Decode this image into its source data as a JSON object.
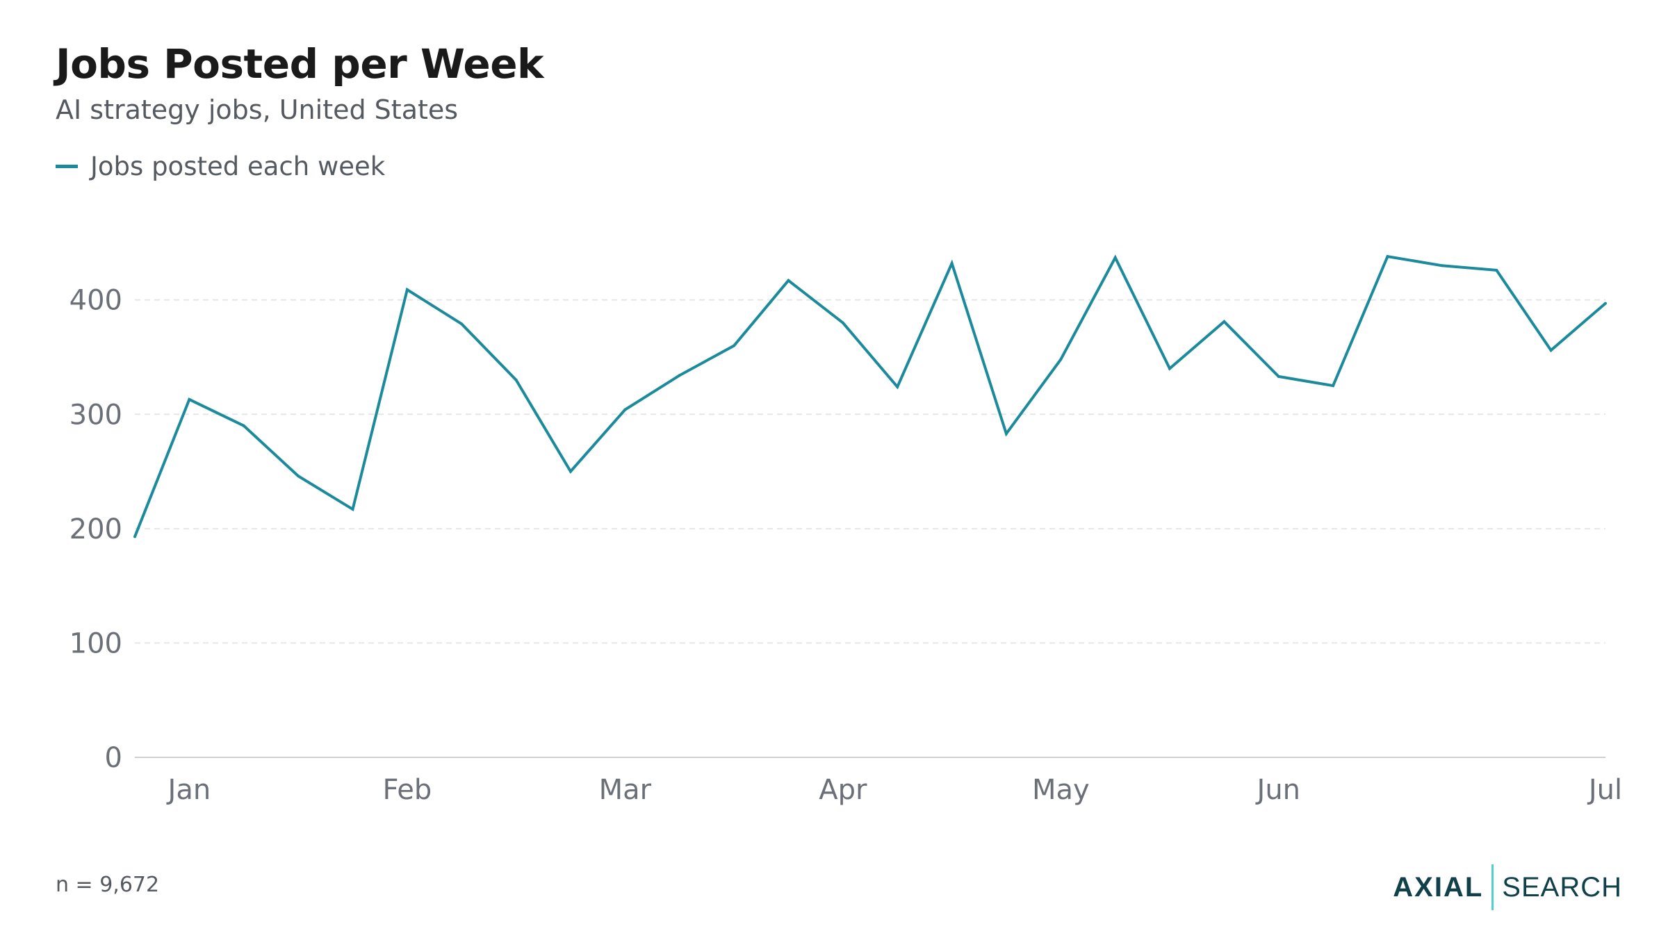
{
  "header": {
    "title": "Jobs Posted per Week",
    "subtitle": "AI strategy jobs, United States"
  },
  "legend": {
    "label": "Jobs posted each week",
    "color": "#1b8a9a"
  },
  "footer": {
    "note": "n = 9,672",
    "brand_logo": "AXIAL",
    "brand_word": "SEARCH",
    "brand_color": "#10414a",
    "brand_accent": "#4fd1c5"
  },
  "chart_data": {
    "type": "line",
    "x": [
      "2024-01-01",
      "2024-01-08",
      "2024-01-15",
      "2024-01-22",
      "2024-01-29",
      "2024-02-05",
      "2024-02-12",
      "2024-02-19",
      "2024-02-26",
      "2024-03-04",
      "2024-03-11",
      "2024-03-18",
      "2024-03-25",
      "2024-04-01",
      "2024-04-08",
      "2024-04-15",
      "2024-04-22",
      "2024-04-29",
      "2024-05-06",
      "2024-05-13",
      "2024-05-20",
      "2024-05-27",
      "2024-06-03",
      "2024-06-10",
      "2024-06-17",
      "2024-06-24",
      "2024-07-01",
      "2024-07-08"
    ],
    "series": [
      {
        "name": "Jobs posted each week",
        "color": "#1b8a9a",
        "values": [
          193,
          313,
          290,
          246,
          217,
          409,
          379,
          330,
          250,
          304,
          334,
          360,
          417,
          380,
          324,
          432,
          283,
          348,
          437,
          340,
          381,
          333,
          325,
          438,
          430,
          426,
          356,
          397
        ]
      }
    ],
    "x_ticks": [
      {
        "label": "Jan",
        "date": "2024-01-08"
      },
      {
        "label": "Feb",
        "date": "2024-02-05"
      },
      {
        "label": "Mar",
        "date": "2024-03-04"
      },
      {
        "label": "Apr",
        "date": "2024-04-01"
      },
      {
        "label": "May",
        "date": "2024-04-29"
      },
      {
        "label": "Jun",
        "date": "2024-05-27"
      },
      {
        "label": "Jul",
        "date": "2024-07-08"
      }
    ],
    "y_ticks": [
      0,
      100,
      200,
      300,
      400
    ],
    "ylim": [
      0,
      480
    ],
    "grid": true,
    "legend_position": "top-left",
    "tick_color": "#6b7078",
    "grid_color": "#e6e6e6",
    "axis_color": "#d0d0d0"
  }
}
